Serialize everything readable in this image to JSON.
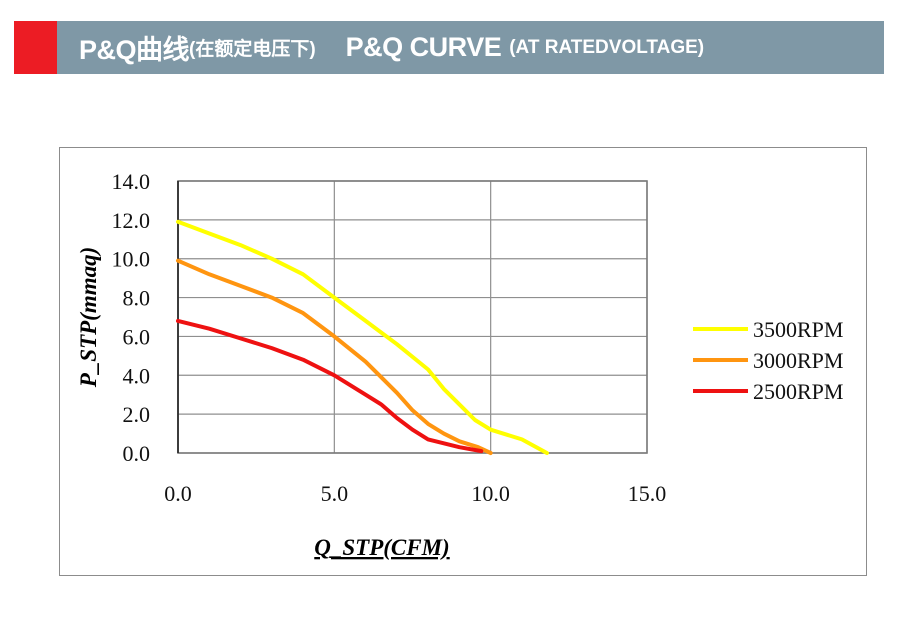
{
  "header": {
    "title_cn": "P&Q曲线",
    "subtitle_cn": "(在额定电压下)",
    "title_en": "P&Q CURVE",
    "subtitle_en": "(AT RATEDVOLTAGE)",
    "accent_color": "#ec1c24",
    "bar_color": "#7f98a6"
  },
  "chart_data": {
    "type": "line",
    "title": "P&Q CURVE (AT RATEDVOLTAGE)",
    "xlabel": "Q_STP(CFM)",
    "ylabel": "P_STP(mmaq)",
    "xlim": [
      0,
      15
    ],
    "ylim": [
      0,
      14
    ],
    "x_ticks": [
      "0.0",
      "5.0",
      "10.0",
      "15.0"
    ],
    "y_ticks": [
      "0.0",
      "2.0",
      "4.0",
      "6.0",
      "8.0",
      "10.0",
      "12.0",
      "14.0"
    ],
    "grid": true,
    "legend_position": "right",
    "series": [
      {
        "name": "3500RPM",
        "color": "#ffff00",
        "x": [
          0,
          1,
          2,
          3,
          4,
          5,
          6,
          7,
          8,
          8.5,
          9,
          9.5,
          10,
          11,
          11.8
        ],
        "y": [
          11.9,
          11.3,
          10.7,
          10.0,
          9.2,
          8.0,
          6.8,
          5.6,
          4.3,
          3.3,
          2.5,
          1.7,
          1.2,
          0.7,
          0.0
        ]
      },
      {
        "name": "3000RPM",
        "color": "#ff9510",
        "x": [
          0,
          1,
          2,
          3,
          4,
          5,
          6,
          6.5,
          7,
          7.5,
          8,
          8.5,
          9,
          9.6,
          10
        ],
        "y": [
          9.9,
          9.2,
          8.6,
          8.0,
          7.2,
          6.0,
          4.7,
          3.9,
          3.1,
          2.2,
          1.5,
          1.0,
          0.6,
          0.3,
          0.0
        ]
      },
      {
        "name": "2500RPM",
        "color": "#ee1111",
        "x": [
          0,
          1,
          2,
          3,
          4,
          5,
          6,
          6.5,
          7,
          7.5,
          8,
          8.5,
          9,
          9.7
        ],
        "y": [
          6.8,
          6.4,
          5.9,
          5.4,
          4.8,
          4.0,
          3.0,
          2.5,
          1.8,
          1.2,
          0.7,
          0.5,
          0.3,
          0.1
        ]
      }
    ]
  }
}
